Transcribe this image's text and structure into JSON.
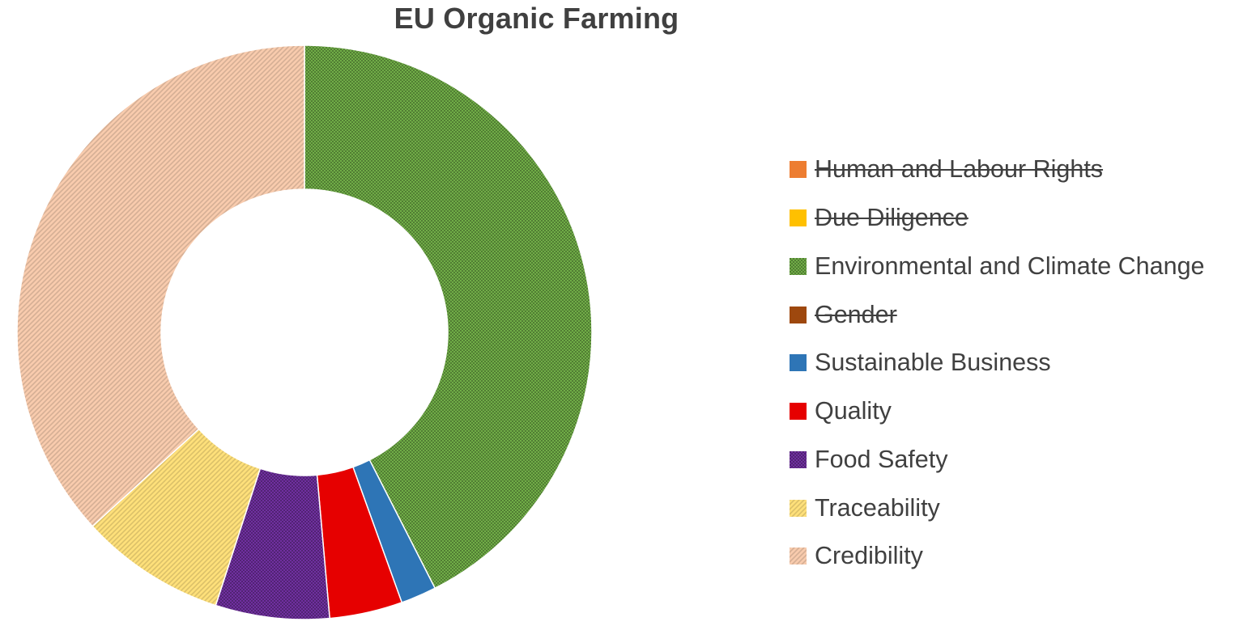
{
  "chart_data": {
    "type": "pie",
    "variant": "doughnut",
    "title": "EU Organic Farming",
    "legend_position": "right",
    "series": [
      {
        "name": "Human and Labour Rights",
        "value": 0,
        "color": "#ED7D31",
        "pattern": "solid",
        "hidden": true
      },
      {
        "name": "Due Diligence",
        "value": 0,
        "color": "#FFC000",
        "pattern": "solid",
        "hidden": true
      },
      {
        "name": "Environmental and Climate Change",
        "value": 42.5,
        "color": "#70AD47",
        "pattern": "checker",
        "hidden": false
      },
      {
        "name": "Gender",
        "value": 0,
        "color": "#9E480E",
        "pattern": "solid",
        "hidden": true
      },
      {
        "name": "Sustainable Business",
        "value": 2.0,
        "color": "#2E75B6",
        "pattern": "solid",
        "hidden": false
      },
      {
        "name": "Quality",
        "value": 4.1,
        "color": "#E60000",
        "pattern": "solid",
        "hidden": false
      },
      {
        "name": "Food Safety",
        "value": 6.4,
        "color": "#7030A0",
        "pattern": "checker",
        "hidden": false
      },
      {
        "name": "Traceability",
        "value": 8.2,
        "color": "#FFE07A",
        "pattern": "diagonal",
        "hidden": false
      },
      {
        "name": "Credibility",
        "value": 36.8,
        "color": "#F8CBAD",
        "pattern": "diagonal",
        "hidden": false
      }
    ]
  }
}
